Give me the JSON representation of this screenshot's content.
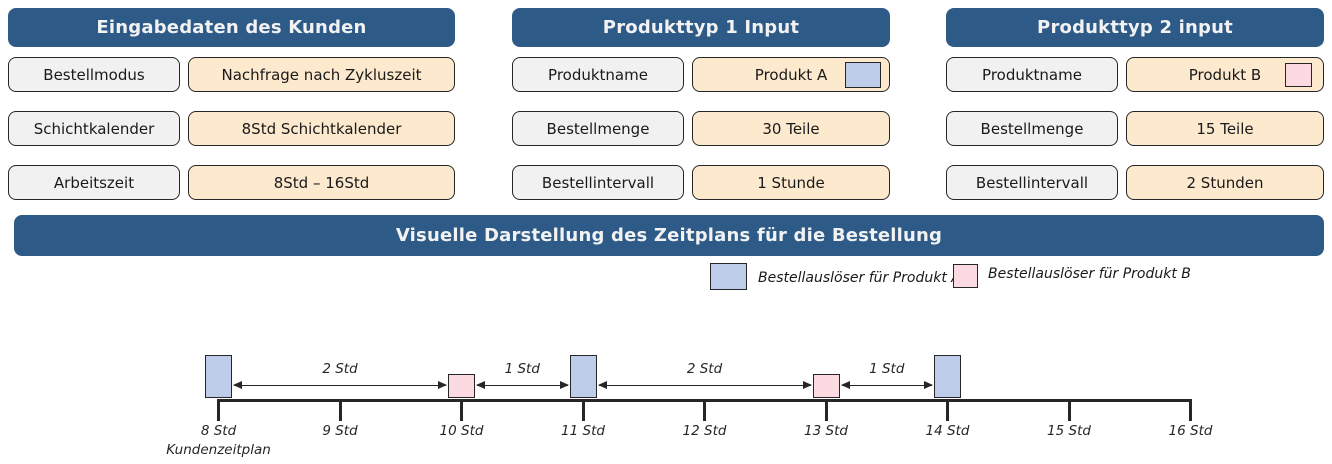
{
  "colors": {
    "header_bg": "#2E5A88",
    "header_text": "#F2F2F2",
    "label_fill": "#F1F1F1",
    "value_fill": "#FCE9CE",
    "product_a": "#BCCCE9",
    "product_b": "#FBDAE2",
    "line": "#262626"
  },
  "panels": [
    {
      "title": "Eingabedaten des Kunden",
      "rows": [
        {
          "label": "Bestellmodus",
          "value": "Nachfrage nach Zykluszeit"
        },
        {
          "label": "Schichtkalender",
          "value": "8Std Schichtkalender"
        },
        {
          "label": "Arbeitszeit",
          "value": "8Std – 16Std"
        }
      ]
    },
    {
      "title": "Produkttyp 1 Input",
      "rows": [
        {
          "label": "Produktname",
          "value": "Produkt A",
          "swatch": "product_a"
        },
        {
          "label": "Bestellmenge",
          "value": "30 Teile"
        },
        {
          "label": "Bestellintervall",
          "value": "1 Stunde"
        }
      ]
    },
    {
      "title": "Produkttyp 2 input",
      "rows": [
        {
          "label": "Produktname",
          "value": "Produkt B",
          "swatch": "product_b"
        },
        {
          "label": "Bestellmenge",
          "value": "15 Teile"
        },
        {
          "label": "Bestellintervall",
          "value": "2 Stunden"
        }
      ]
    }
  ],
  "banner": {
    "title": "Visuelle Darstellung des Zeitplans für die Bestellung"
  },
  "legend": [
    {
      "label": "Bestellauslöser für Produkt A",
      "color_key": "product_a"
    },
    {
      "label": "Bestellauslöser für Produkt B",
      "color_key": "product_b"
    }
  ],
  "chart_data": {
    "type": "timeline",
    "title": "Visuelle Darstellung des Zeitplans für die Bestellung",
    "axis_caption": "Kundenzeitplan",
    "hour_start": 8,
    "hour_end": 16,
    "tick_labels": [
      "8 Std",
      "9 Std",
      "10 Std",
      "11 Std",
      "12 Std",
      "13 Std",
      "14 Std",
      "15 Std",
      "16 Std"
    ],
    "triggers": [
      {
        "hour": 8,
        "product": "A"
      },
      {
        "hour": 10,
        "product": "B"
      },
      {
        "hour": 11,
        "product": "A"
      },
      {
        "hour": 13,
        "product": "B"
      },
      {
        "hour": 14,
        "product": "A"
      }
    ],
    "intervals": [
      {
        "from": 8,
        "to": 10,
        "label": "2 Std"
      },
      {
        "from": 10,
        "to": 11,
        "label": "1 Std"
      },
      {
        "from": 11,
        "to": 13,
        "label": "2 Std"
      },
      {
        "from": 13,
        "to": 14,
        "label": "1 Std"
      }
    ]
  }
}
